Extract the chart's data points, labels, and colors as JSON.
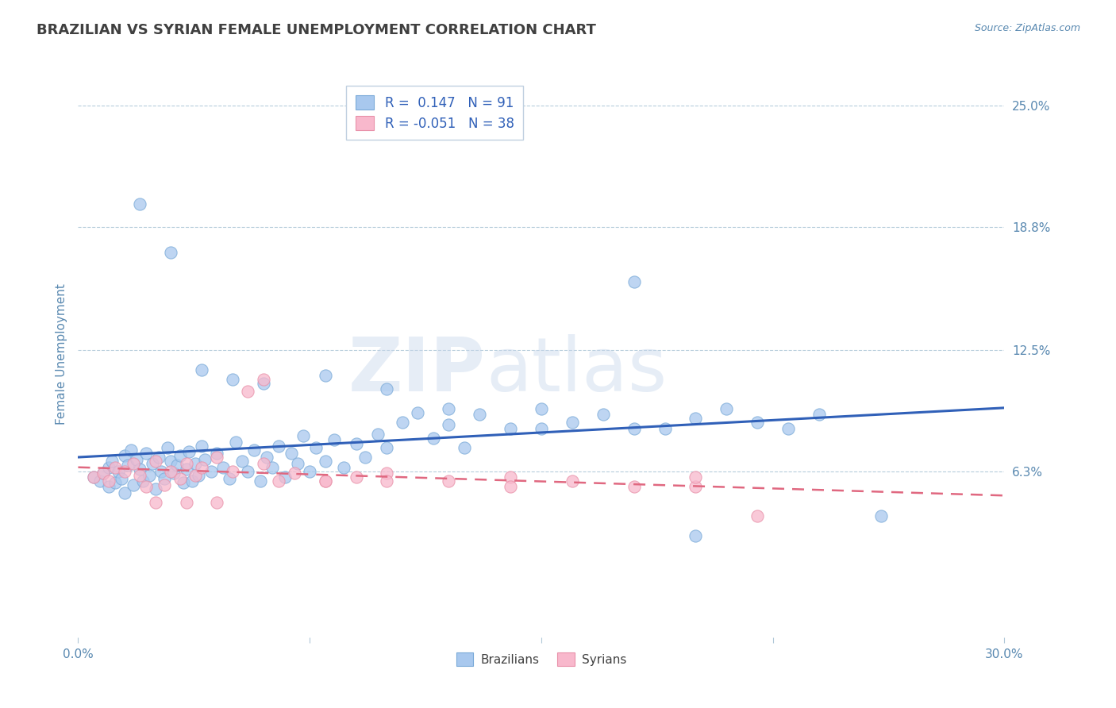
{
  "title": "BRAZILIAN VS SYRIAN FEMALE UNEMPLOYMENT CORRELATION CHART",
  "source_text": "Source: ZipAtlas.com",
  "ylabel": "Female Unemployment",
  "xlim": [
    0.0,
    0.3
  ],
  "ylim": [
    -0.022,
    0.268
  ],
  "xtick_labels": [
    "0.0%",
    "30.0%"
  ],
  "xtick_positions": [
    0.0,
    0.3
  ],
  "ytick_labels": [
    "6.3%",
    "12.5%",
    "18.8%",
    "25.0%"
  ],
  "ytick_positions": [
    0.063,
    0.125,
    0.188,
    0.25
  ],
  "watermark_zip": "ZIP",
  "watermark_atlas": "atlas",
  "legend_line1": "R =  0.147   N = 91",
  "legend_line2": "R = -0.051   N = 38",
  "brazil_color": "#a8c8ee",
  "brazil_edge_color": "#7aaad8",
  "syria_color": "#f8b8cc",
  "syria_edge_color": "#e890a8",
  "brazil_line_color": "#3060b8",
  "syria_line_color": "#e06880",
  "grid_color": "#b0c8d8",
  "title_color": "#404040",
  "axis_label_color": "#5888b0",
  "legend_text_color": "#3060b8",
  "background_color": "#ffffff",
  "brazil_scatter_x": [
    0.005,
    0.007,
    0.008,
    0.01,
    0.01,
    0.011,
    0.012,
    0.013,
    0.014,
    0.015,
    0.015,
    0.016,
    0.017,
    0.018,
    0.019,
    0.02,
    0.021,
    0.022,
    0.023,
    0.024,
    0.025,
    0.026,
    0.027,
    0.028,
    0.029,
    0.03,
    0.031,
    0.032,
    0.033,
    0.034,
    0.035,
    0.036,
    0.037,
    0.038,
    0.039,
    0.04,
    0.041,
    0.043,
    0.045,
    0.047,
    0.049,
    0.051,
    0.053,
    0.055,
    0.057,
    0.059,
    0.061,
    0.063,
    0.065,
    0.067,
    0.069,
    0.071,
    0.073,
    0.075,
    0.077,
    0.08,
    0.083,
    0.086,
    0.09,
    0.093,
    0.097,
    0.1,
    0.105,
    0.11,
    0.115,
    0.12,
    0.125,
    0.13,
    0.14,
    0.15,
    0.16,
    0.17,
    0.18,
    0.19,
    0.2,
    0.21,
    0.22,
    0.23,
    0.24,
    0.26,
    0.02,
    0.03,
    0.04,
    0.05,
    0.06,
    0.08,
    0.1,
    0.12,
    0.15,
    0.18,
    0.2
  ],
  "brazil_scatter_y": [
    0.06,
    0.058,
    0.062,
    0.055,
    0.065,
    0.068,
    0.057,
    0.063,
    0.059,
    0.071,
    0.052,
    0.066,
    0.074,
    0.056,
    0.069,
    0.064,
    0.058,
    0.072,
    0.061,
    0.067,
    0.054,
    0.07,
    0.063,
    0.059,
    0.075,
    0.068,
    0.062,
    0.066,
    0.071,
    0.057,
    0.064,
    0.073,
    0.058,
    0.067,
    0.061,
    0.076,
    0.069,
    0.063,
    0.072,
    0.065,
    0.059,
    0.078,
    0.068,
    0.063,
    0.074,
    0.058,
    0.07,
    0.065,
    0.076,
    0.06,
    0.072,
    0.067,
    0.081,
    0.063,
    0.075,
    0.068,
    0.079,
    0.065,
    0.077,
    0.07,
    0.082,
    0.075,
    0.088,
    0.093,
    0.08,
    0.087,
    0.075,
    0.092,
    0.085,
    0.095,
    0.088,
    0.092,
    0.16,
    0.085,
    0.09,
    0.095,
    0.088,
    0.085,
    0.092,
    0.04,
    0.2,
    0.175,
    0.115,
    0.11,
    0.108,
    0.112,
    0.105,
    0.095,
    0.085,
    0.085,
    0.03
  ],
  "syria_scatter_x": [
    0.005,
    0.008,
    0.01,
    0.012,
    0.015,
    0.018,
    0.02,
    0.022,
    0.025,
    0.028,
    0.03,
    0.033,
    0.035,
    0.038,
    0.04,
    0.045,
    0.05,
    0.055,
    0.06,
    0.065,
    0.07,
    0.08,
    0.09,
    0.1,
    0.12,
    0.14,
    0.16,
    0.18,
    0.2,
    0.22,
    0.025,
    0.035,
    0.045,
    0.06,
    0.08,
    0.1,
    0.14,
    0.2
  ],
  "syria_scatter_y": [
    0.06,
    0.062,
    0.058,
    0.065,
    0.063,
    0.067,
    0.061,
    0.055,
    0.068,
    0.056,
    0.063,
    0.059,
    0.067,
    0.061,
    0.065,
    0.07,
    0.063,
    0.104,
    0.067,
    0.058,
    0.062,
    0.058,
    0.06,
    0.062,
    0.058,
    0.06,
    0.058,
    0.055,
    0.055,
    0.04,
    0.047,
    0.047,
    0.047,
    0.11,
    0.058,
    0.058,
    0.055,
    0.06
  ]
}
